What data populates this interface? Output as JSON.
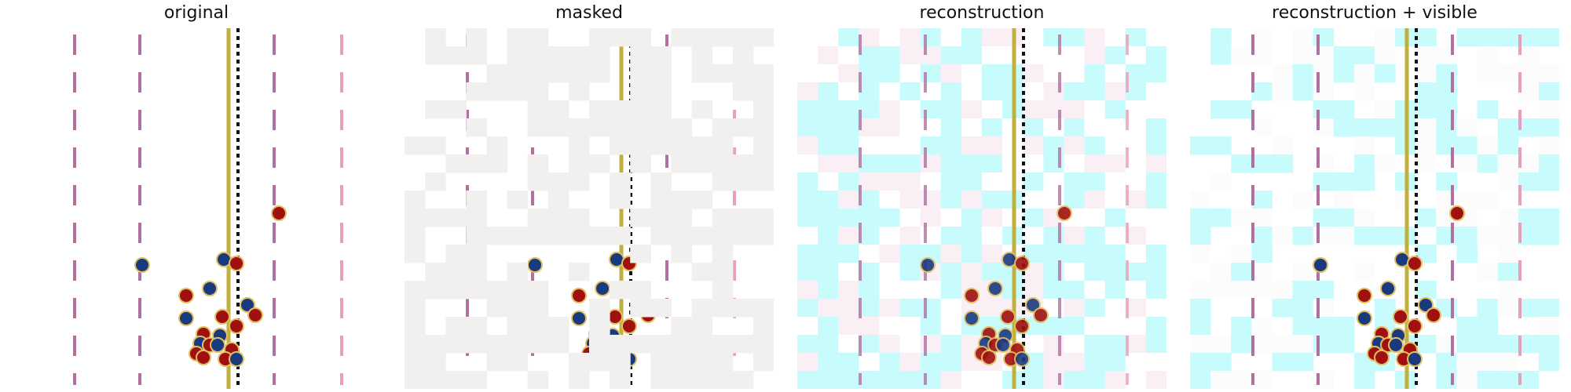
{
  "figure": {
    "panels": [
      {
        "id": "original",
        "title": "original"
      },
      {
        "id": "masked",
        "title": "masked"
      },
      {
        "id": "reconstruction",
        "title": "reconstruction"
      },
      {
        "id": "reconstruction-visible",
        "title": "reconstruction + visible"
      }
    ]
  },
  "colors": {
    "lane_pink": "#b070a0",
    "lane_light_pink": "#e8a0b8",
    "yellow_line": "#c0b040",
    "black_dots": "#111111",
    "mask_gray": "#f2f0ee",
    "cyan_fill": "#c8fbfc",
    "red_dot": "#a01010",
    "blue_dot": "#1a3a80",
    "dot_ring": "#e0c060"
  }
}
